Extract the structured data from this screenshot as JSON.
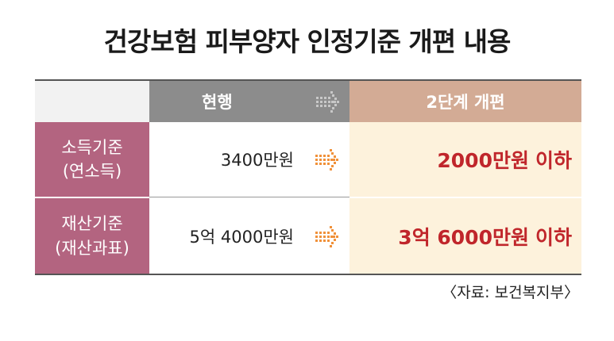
{
  "title": "건강보험 피부양자 인정기준 개편 내용",
  "header": {
    "current": "현행",
    "reform": "2단계 개편"
  },
  "rows": [
    {
      "label_line1": "소득기준",
      "label_line2": "(연소득)",
      "current_value": "3400만원",
      "reform_value": "2000만원",
      "reform_suffix": "이하"
    },
    {
      "label_line1": "재산기준",
      "label_line2": "(재산과표)",
      "current_value": "5억 4000만원",
      "reform_value": "3억 6000만원",
      "reform_suffix": "이하"
    }
  ],
  "source": "〈자료: 보건복지부〉",
  "colors": {
    "header_current_bg": "#8c8c8c",
    "header_reform_bg": "#d3ab95",
    "row_label_bg": "#b36480",
    "reform_cell_bg": "#fdf2dc",
    "reform_text": "#c0262b",
    "arrow_orange": "#f0913a",
    "arrow_gray": "#c8c8c8"
  }
}
